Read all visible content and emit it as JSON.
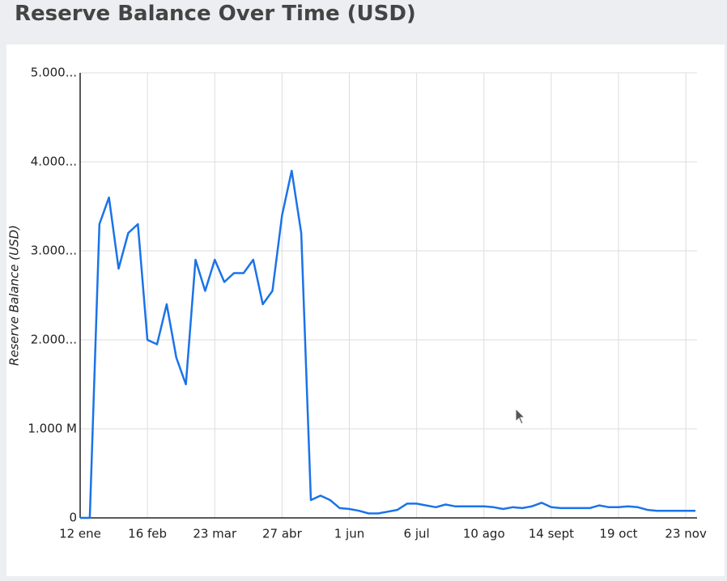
{
  "chart_data": {
    "type": "line",
    "title": "Reserve Balance Over Time (USD)",
    "y_label": "Reserve Balance (USD)",
    "x": [
      "12 ene",
      "17 ene",
      "22 ene",
      "27 ene",
      "1 feb",
      "6 feb",
      "11 feb",
      "16 feb",
      "21 feb",
      "26 feb",
      "3 mar",
      "8 mar",
      "13 mar",
      "18 mar",
      "23 mar",
      "28 mar",
      "2 abr",
      "7 abr",
      "12 abr",
      "17 abr",
      "22 abr",
      "27 abr",
      "2 may",
      "7 may",
      "12 may",
      "17 may",
      "22 may",
      "27 may",
      "1 jun",
      "6 jun",
      "11 jun",
      "16 jun",
      "21 jun",
      "26 jun",
      "1 jul",
      "6 jul",
      "11 jul",
      "16 jul",
      "21 jul",
      "26 jul",
      "31 jul",
      "5 ago",
      "10 ago",
      "15 ago",
      "20 ago",
      "25 ago",
      "30 ago",
      "4 sept",
      "9 sept",
      "14 sept",
      "19 sept",
      "24 sept",
      "29 sept",
      "4 oct",
      "9 oct",
      "14 oct",
      "19 oct",
      "24 oct",
      "29 oct",
      "3 nov",
      "8 nov",
      "13 nov",
      "18 nov",
      "23 nov",
      "28 nov"
    ],
    "series": [
      {
        "name": "Reserve Balance",
        "color": "#1a73e8",
        "values": [
          0,
          0,
          3300000000,
          3600000000,
          2800000000,
          3200000000,
          3300000000,
          2000000000,
          1950000000,
          2400000000,
          1800000000,
          1500000000,
          2900000000,
          2550000000,
          2900000000,
          2650000000,
          2750000000,
          2750000000,
          2900000000,
          2400000000,
          2550000000,
          3400000000,
          3900000000,
          3200000000,
          200000000,
          250000000,
          200000000,
          110000000,
          100000000,
          80000000,
          50000000,
          50000000,
          70000000,
          90000000,
          160000000,
          160000000,
          140000000,
          120000000,
          150000000,
          130000000,
          130000000,
          130000000,
          130000000,
          120000000,
          100000000,
          120000000,
          110000000,
          130000000,
          170000000,
          120000000,
          110000000,
          110000000,
          110000000,
          110000000,
          140000000,
          120000000,
          120000000,
          130000000,
          120000000,
          90000000,
          80000000,
          80000000,
          80000000,
          80000000,
          80000000
        ]
      }
    ],
    "xticks": [
      "12 ene",
      "16 feb",
      "23 mar",
      "27 abr",
      "1 jun",
      "6 jul",
      "10 ago",
      "14 sept",
      "19 oct",
      "23 nov"
    ],
    "ylim": [
      0,
      5000000000
    ],
    "yticks": [
      0,
      {
        "value": 1000000000,
        "label": "1.000 M"
      },
      {
        "value": 2000000000,
        "label": "2.000..."
      },
      {
        "value": 3000000000,
        "label": "3.000..."
      },
      {
        "value": 4000000000,
        "label": "4.000..."
      },
      {
        "value": 5000000000,
        "label": "5.000..."
      }
    ],
    "grid": true
  }
}
